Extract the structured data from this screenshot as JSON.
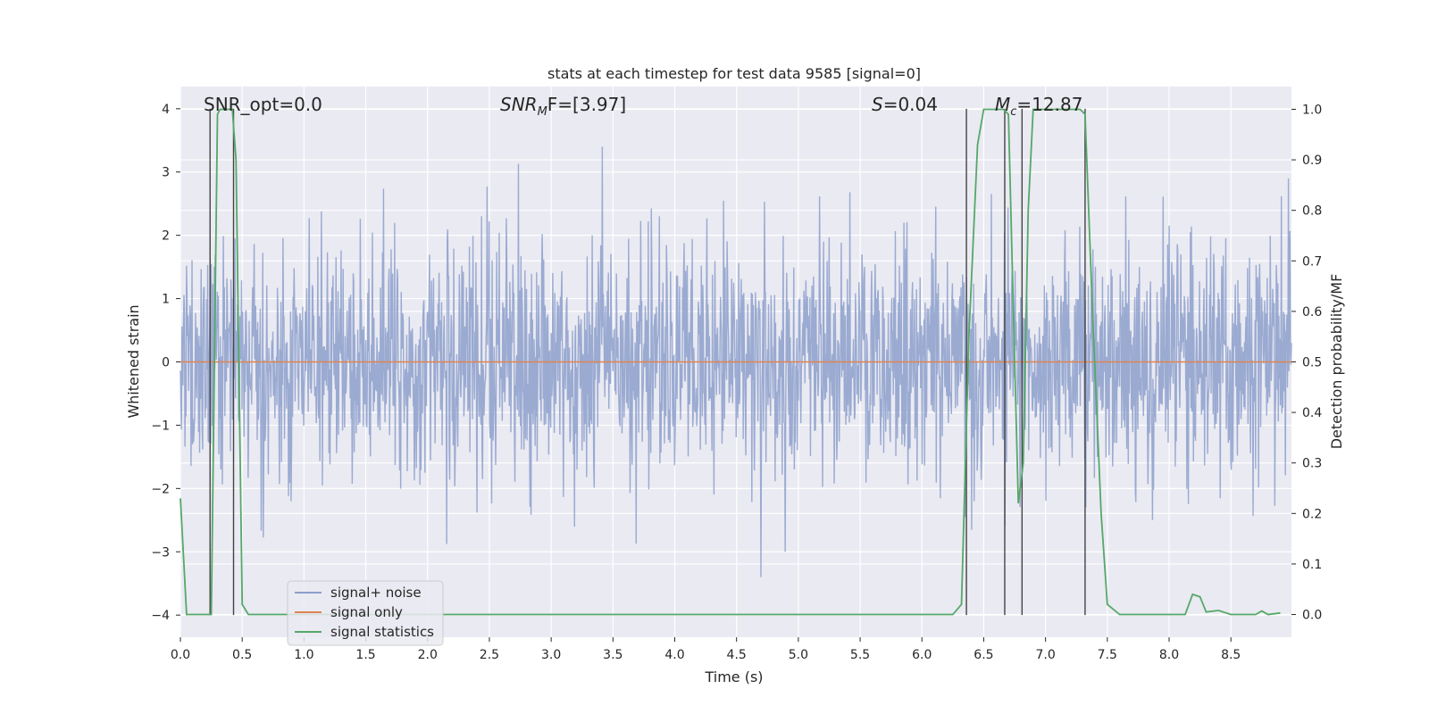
{
  "chart_data": {
    "type": "line",
    "title": "stats at each timestep for test data 9585 [signal=0]",
    "xlabel": "Time (s)",
    "ylabel_left": "Whitened strain",
    "ylabel_right": "Detection probability/MF",
    "xlim": [
      0.0,
      8.99
    ],
    "ylim_left": [
      -4.35,
      4.35
    ],
    "ylim_right": [
      -0.045,
      1.045
    ],
    "xticks": [
      0.0,
      0.5,
      1.0,
      1.5,
      2.0,
      2.5,
      3.0,
      3.5,
      4.0,
      4.5,
      5.0,
      5.5,
      6.0,
      6.5,
      7.0,
      7.5,
      8.0,
      8.5
    ],
    "xtick_labels": [
      "0.0",
      "0.5",
      "1.0",
      "1.5",
      "2.0",
      "2.5",
      "3.0",
      "3.5",
      "4.0",
      "4.5",
      "5.0",
      "5.5",
      "6.0",
      "6.5",
      "7.0",
      "7.5",
      "8.0",
      "8.5"
    ],
    "yticks_left": [
      4,
      3,
      2,
      1,
      0,
      -1,
      -2,
      -3,
      -4
    ],
    "ytick_labels_left": [
      "4",
      "3",
      "2",
      "1",
      "0",
      "−1",
      "−2",
      "−3",
      "−4"
    ],
    "yticks_right": [
      1.0,
      0.9,
      0.8,
      0.7,
      0.6,
      0.5,
      0.4,
      0.3,
      0.2,
      0.1,
      0.0
    ],
    "ytick_labels_right": [
      "1.0",
      "0.9",
      "0.8",
      "0.7",
      "0.6",
      "0.5",
      "0.4",
      "0.3",
      "0.2",
      "0.1",
      "0.0"
    ],
    "annotations": {
      "snr_opt": "SNR_opt=0.0",
      "snr_mf_prefix": "SNR",
      "snr_mf_sub": "M",
      "snr_mf_rest": "F=[3.97]",
      "s_sym": "S",
      "s_rest": "=0.04",
      "mc_sym": "M",
      "mc_sub": "c",
      "mc_rest": "=12.87"
    },
    "legend": [
      {
        "name": "signal+ noise",
        "color": "#8c9fcb"
      },
      {
        "name": "signal only",
        "color": "#dd8452"
      },
      {
        "name": "signal statistics",
        "color": "#55a868"
      }
    ],
    "noise_series": {
      "name": "signal+ noise",
      "color": "#8c9fcb",
      "x_start": 0.0,
      "x_end": 8.99,
      "sample_count": 2200,
      "std": 0.95,
      "seed": 9585
    },
    "signal_series": {
      "name": "signal only",
      "color": "#dd8452",
      "x": [
        0.0,
        8.99
      ],
      "y": [
        0.0,
        0.0
      ]
    },
    "statistics_series": {
      "name": "signal statistics",
      "color": "#55a868",
      "x": [
        0.0,
        0.05,
        0.25,
        0.3,
        0.32,
        0.38,
        0.42,
        0.45,
        0.5,
        0.55,
        1.0,
        2.0,
        3.0,
        4.0,
        5.0,
        6.0,
        6.25,
        6.32,
        6.38,
        6.45,
        6.5,
        6.6,
        6.66,
        6.7,
        6.74,
        6.78,
        6.82,
        6.86,
        6.9,
        7.0,
        7.1,
        7.2,
        7.28,
        7.32,
        7.38,
        7.45,
        7.5,
        7.6,
        7.8,
        8.0,
        8.13,
        8.19,
        8.25,
        8.3,
        8.4,
        8.5,
        8.7,
        8.75,
        8.8,
        8.9
      ],
      "y": [
        0.23,
        0.0,
        0.0,
        0.99,
        1.0,
        1.0,
        1.0,
        0.9,
        0.02,
        0.0,
        0.0,
        0.0,
        0.0,
        0.0,
        0.0,
        0.0,
        0.0,
        0.02,
        0.55,
        0.93,
        1.0,
        1.0,
        1.0,
        0.99,
        0.6,
        0.22,
        0.3,
        0.8,
        1.0,
        1.0,
        1.0,
        1.0,
        1.0,
        0.99,
        0.6,
        0.2,
        0.02,
        0.0,
        0.0,
        0.0,
        0.0,
        0.04,
        0.035,
        0.005,
        0.008,
        0.0,
        0.0,
        0.007,
        0.0,
        0.003
      ]
    },
    "vertical_lines": {
      "color": "#444444",
      "x": [
        0.24,
        0.43,
        6.36,
        6.67,
        6.81,
        7.32
      ],
      "y_top": 4.0,
      "y_bottom": -4.0
    },
    "colors": {
      "background": "#eaeaf2",
      "grid": "#ffffff"
    }
  }
}
